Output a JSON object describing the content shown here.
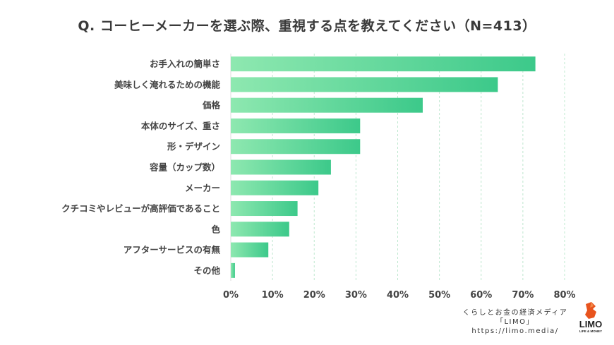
{
  "title": "Q. コーヒーメーカーを選ぶ際、重視する点を教えてください（N=413）",
  "chart_data": {
    "type": "bar",
    "orientation": "horizontal",
    "title": "Q. コーヒーメーカーを選ぶ際、重視する点を教えてください（N=413）",
    "categories": [
      "お手入れの簡単さ",
      "美味しく淹れるための機能",
      "価格",
      "本体のサイズ、重さ",
      "形・デザイン",
      "容量（カップ数）",
      "メーカー",
      "クチコミやレビューが高評価であること",
      "色",
      "アフターサービスの有無",
      "その他"
    ],
    "values": [
      73,
      64,
      46,
      31,
      31,
      24,
      21,
      16,
      14,
      9,
      1
    ],
    "xlim": [
      0,
      80
    ],
    "ticks": [
      0,
      10,
      20,
      30,
      40,
      50,
      60,
      70,
      80
    ],
    "tick_labels": [
      "0%",
      "10%",
      "20%",
      "30%",
      "40%",
      "50%",
      "60%",
      "70%",
      "80%"
    ],
    "xlabel": "",
    "ylabel": "",
    "grid": true,
    "bar_color_start": "#8ee8b0",
    "bar_color_end": "#3cc98a"
  },
  "footer": {
    "line1": "くらしとお金の経済メディア",
    "line2": "「LIMO」",
    "line3": "https://limo.media/"
  },
  "logo": {
    "name": "LIMO",
    "tagline": "LIFE & MONEY",
    "color": "#e8541e"
  }
}
